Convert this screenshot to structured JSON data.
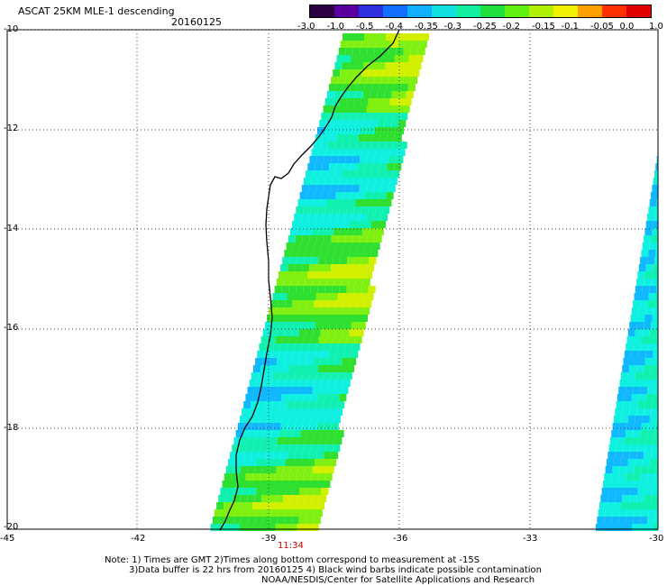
{
  "header": {
    "title": "ASCAT 25KM MLE-1 descending",
    "date": "20160125"
  },
  "colorbar": {
    "labels": [
      "-3.0",
      "-1.0",
      "-0.5",
      "-0.4",
      "-0.35",
      "-0.3",
      "-0.25",
      "-0.2",
      "-0.15",
      "-0.1",
      "-0.05",
      "0.0",
      "1.0"
    ],
    "colors": [
      "#2a0040",
      "#5a00a0",
      "#3030e0",
      "#1070ff",
      "#10b0ff",
      "#10e0e0",
      "#10f0a0",
      "#20e040",
      "#60f010",
      "#b0f000",
      "#f0f000",
      "#ffa000",
      "#ff3000",
      "#e00000"
    ]
  },
  "axes": {
    "lat_labels": [
      "-10",
      "-12",
      "-14",
      "-16",
      "-18",
      "-20"
    ],
    "lon_labels": [
      "-45",
      "-42",
      "-39",
      "-36",
      "-33",
      "-30"
    ],
    "time_label": "11:34"
  },
  "notes": {
    "line1": "Note: 1) Times are GMT 2)Times along bottom correspond to measurement at -15S",
    "line2": "3)Data buffer is 22 hrs from 20160125 4) Black wind barbs indicate possible contamination",
    "credit": "NOAA/NESDIS/Center for Satellite Applications and Research"
  }
}
